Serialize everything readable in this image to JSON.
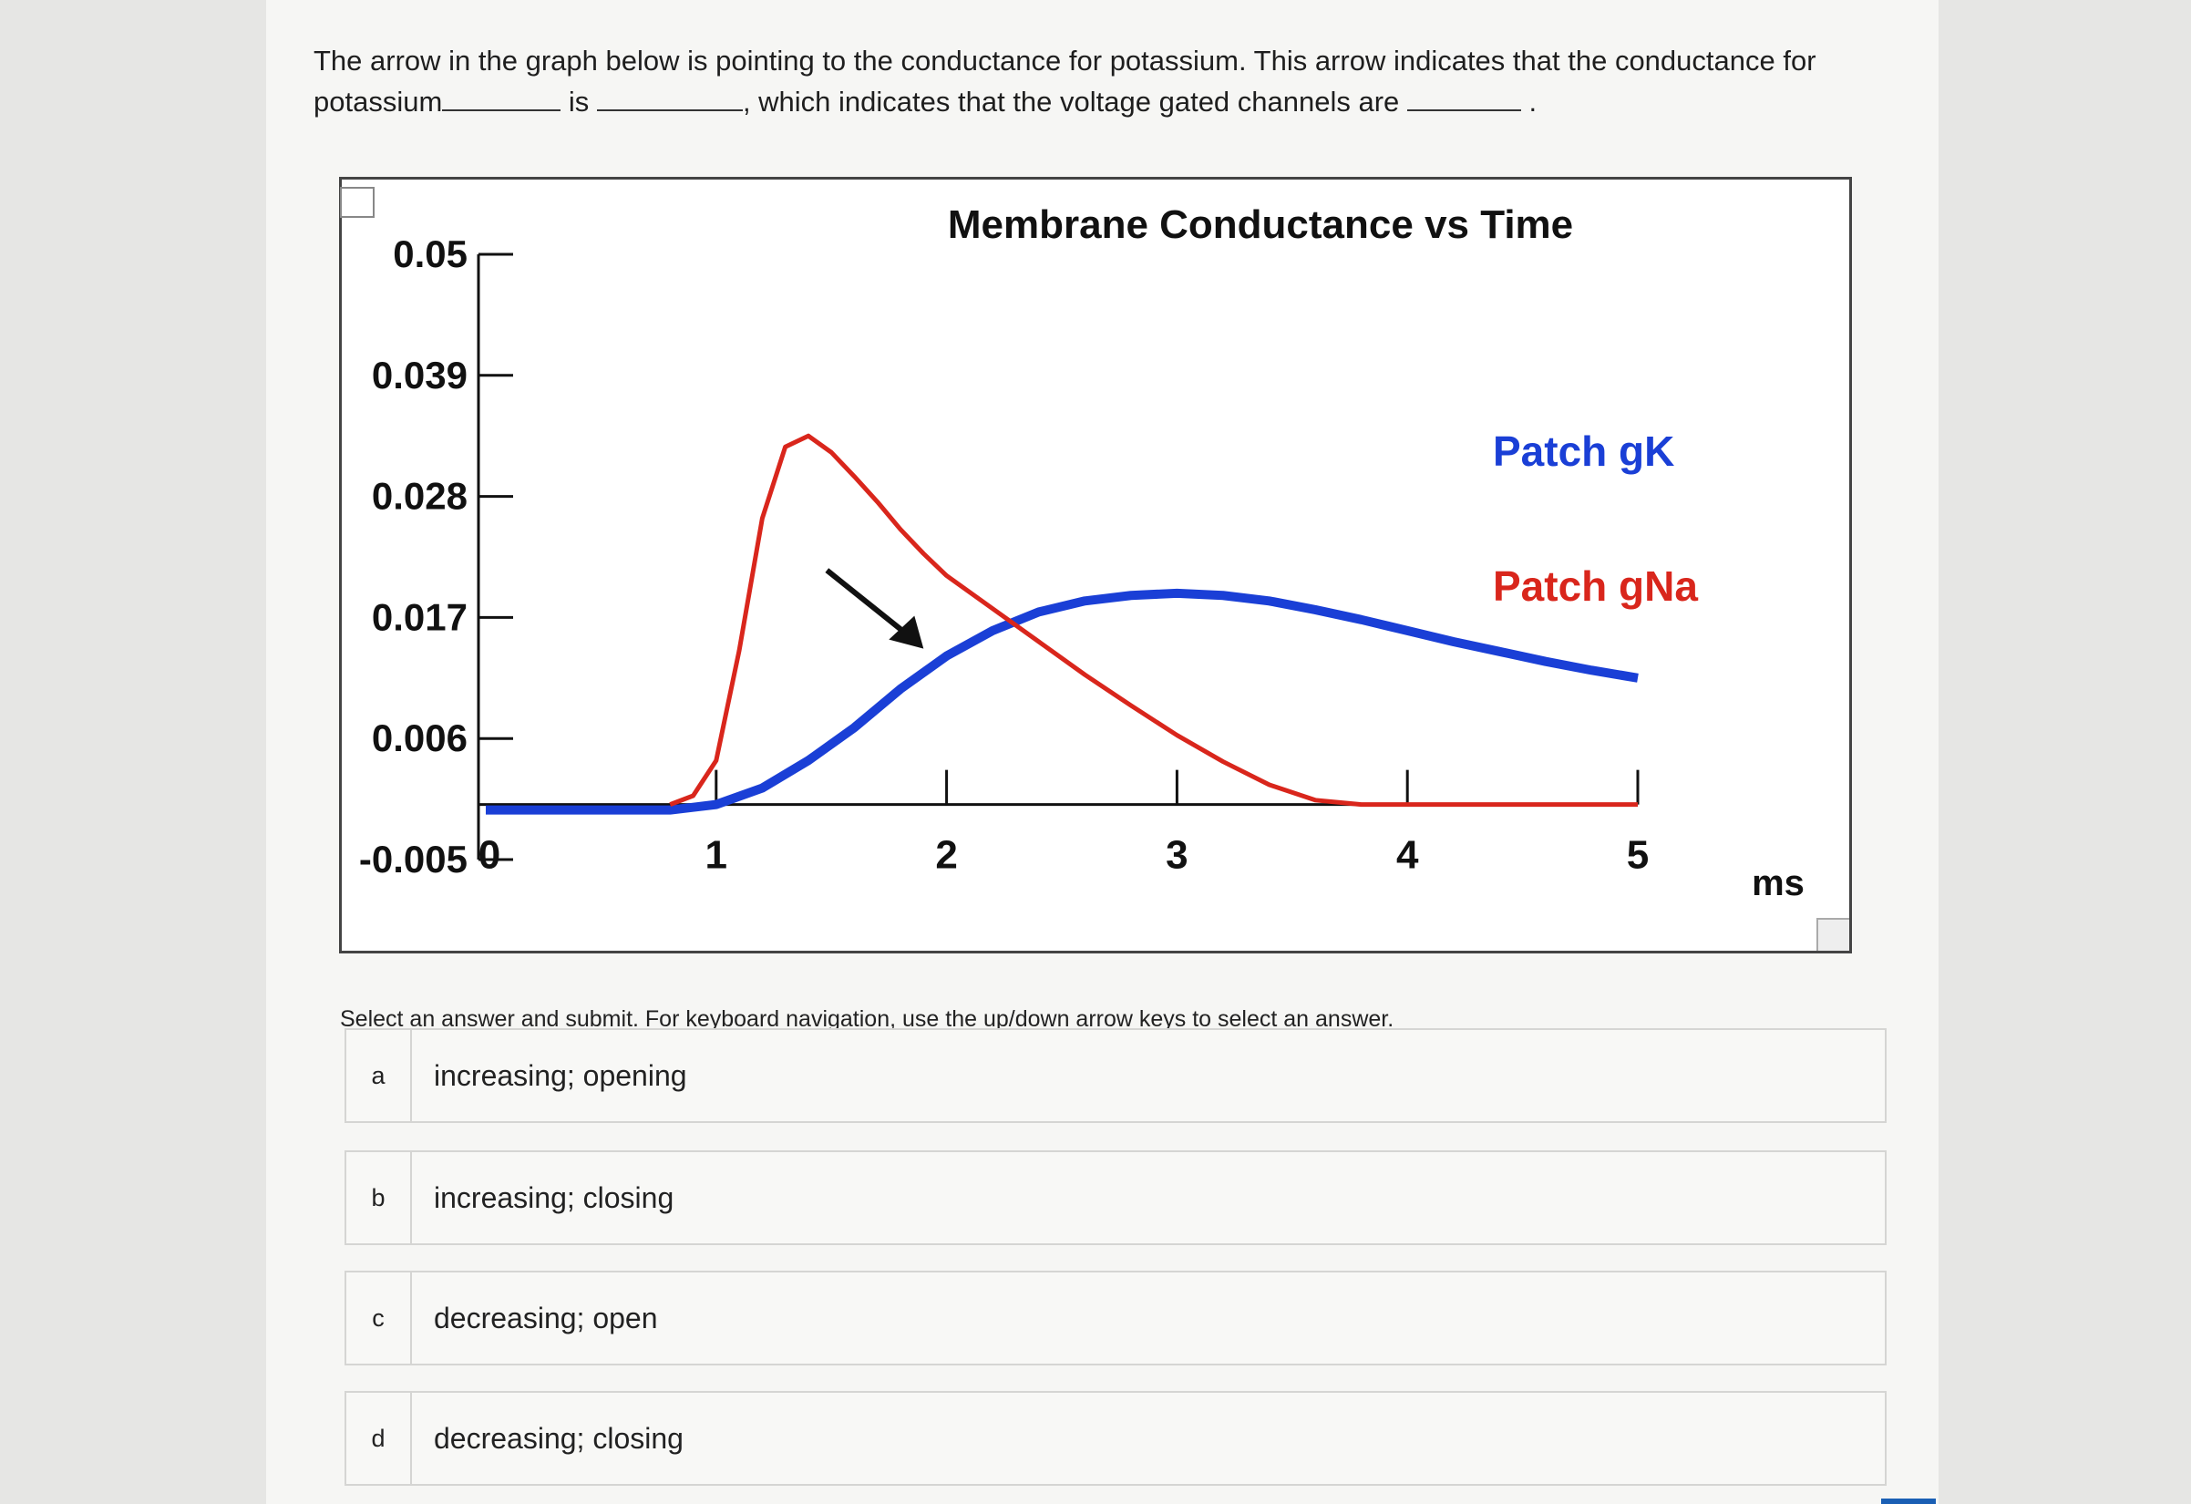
{
  "question": {
    "line1": "The arrow in the graph below is pointing to the conductance for potassium. This arrow indicates that the conductance for",
    "line2_a": "potassium",
    "line2_b": "is",
    "line2_c": ", which indicates that the voltage gated channels are",
    "line2_d": "."
  },
  "instructions": "Select an answer and submit. For keyboard navigation, use the up/down arrow keys to select an answer.",
  "options": [
    {
      "letter": "a",
      "text": "increasing; opening"
    },
    {
      "letter": "b",
      "text": "increasing; closing"
    },
    {
      "letter": "c",
      "text": "decreasing; open"
    },
    {
      "letter": "d",
      "text": "decreasing; closing"
    }
  ],
  "chart_data": {
    "type": "line",
    "title": "Membrane Conductance vs Time",
    "xlabel": "ms",
    "ylabel": "",
    "x_ticks": [
      "0",
      "1",
      "2",
      "3",
      "4",
      "5"
    ],
    "y_ticks": [
      "-0.005",
      "0.006",
      "0.017",
      "0.028",
      "0.039",
      "0.05"
    ],
    "xlim": [
      0,
      5
    ],
    "ylim": [
      -0.005,
      0.05
    ],
    "legend_placement": "right",
    "arrow_annotation": {
      "x": 1.9,
      "y": 0.0135,
      "points_to": "Patch gK"
    },
    "series": [
      {
        "name": "Patch gK",
        "color": "#1a3fd6",
        "x": [
          0,
          0.8,
          1.0,
          1.2,
          1.4,
          1.6,
          1.8,
          2.0,
          2.2,
          2.4,
          2.6,
          2.8,
          3.0,
          3.2,
          3.4,
          3.6,
          3.8,
          4.0,
          4.2,
          4.4,
          4.6,
          4.8,
          5.0
        ],
        "values": [
          -0.0005,
          -0.0005,
          0.0,
          0.0015,
          0.004,
          0.007,
          0.0105,
          0.0135,
          0.0158,
          0.0175,
          0.0185,
          0.019,
          0.0192,
          0.019,
          0.0185,
          0.0177,
          0.0168,
          0.0158,
          0.0148,
          0.0139,
          0.013,
          0.0122,
          0.0115
        ]
      },
      {
        "name": "Patch gNa",
        "color": "#d9261c",
        "x": [
          0.8,
          0.9,
          1.0,
          1.1,
          1.2,
          1.3,
          1.4,
          1.5,
          1.6,
          1.7,
          1.8,
          1.9,
          2.0,
          2.2,
          2.4,
          2.6,
          2.8,
          3.0,
          3.2,
          3.4,
          3.6,
          3.8,
          4.0,
          4.2,
          4.4,
          4.6,
          4.8,
          5.0
        ],
        "values": [
          0.0,
          0.0008,
          0.004,
          0.014,
          0.026,
          0.0325,
          0.0335,
          0.032,
          0.0298,
          0.0275,
          0.025,
          0.0228,
          0.0208,
          0.0178,
          0.0148,
          0.0118,
          0.009,
          0.0063,
          0.0039,
          0.0018,
          0.0004,
          0.0,
          0.0,
          0.0,
          0.0,
          0.0,
          0.0,
          0.0
        ]
      }
    ]
  }
}
